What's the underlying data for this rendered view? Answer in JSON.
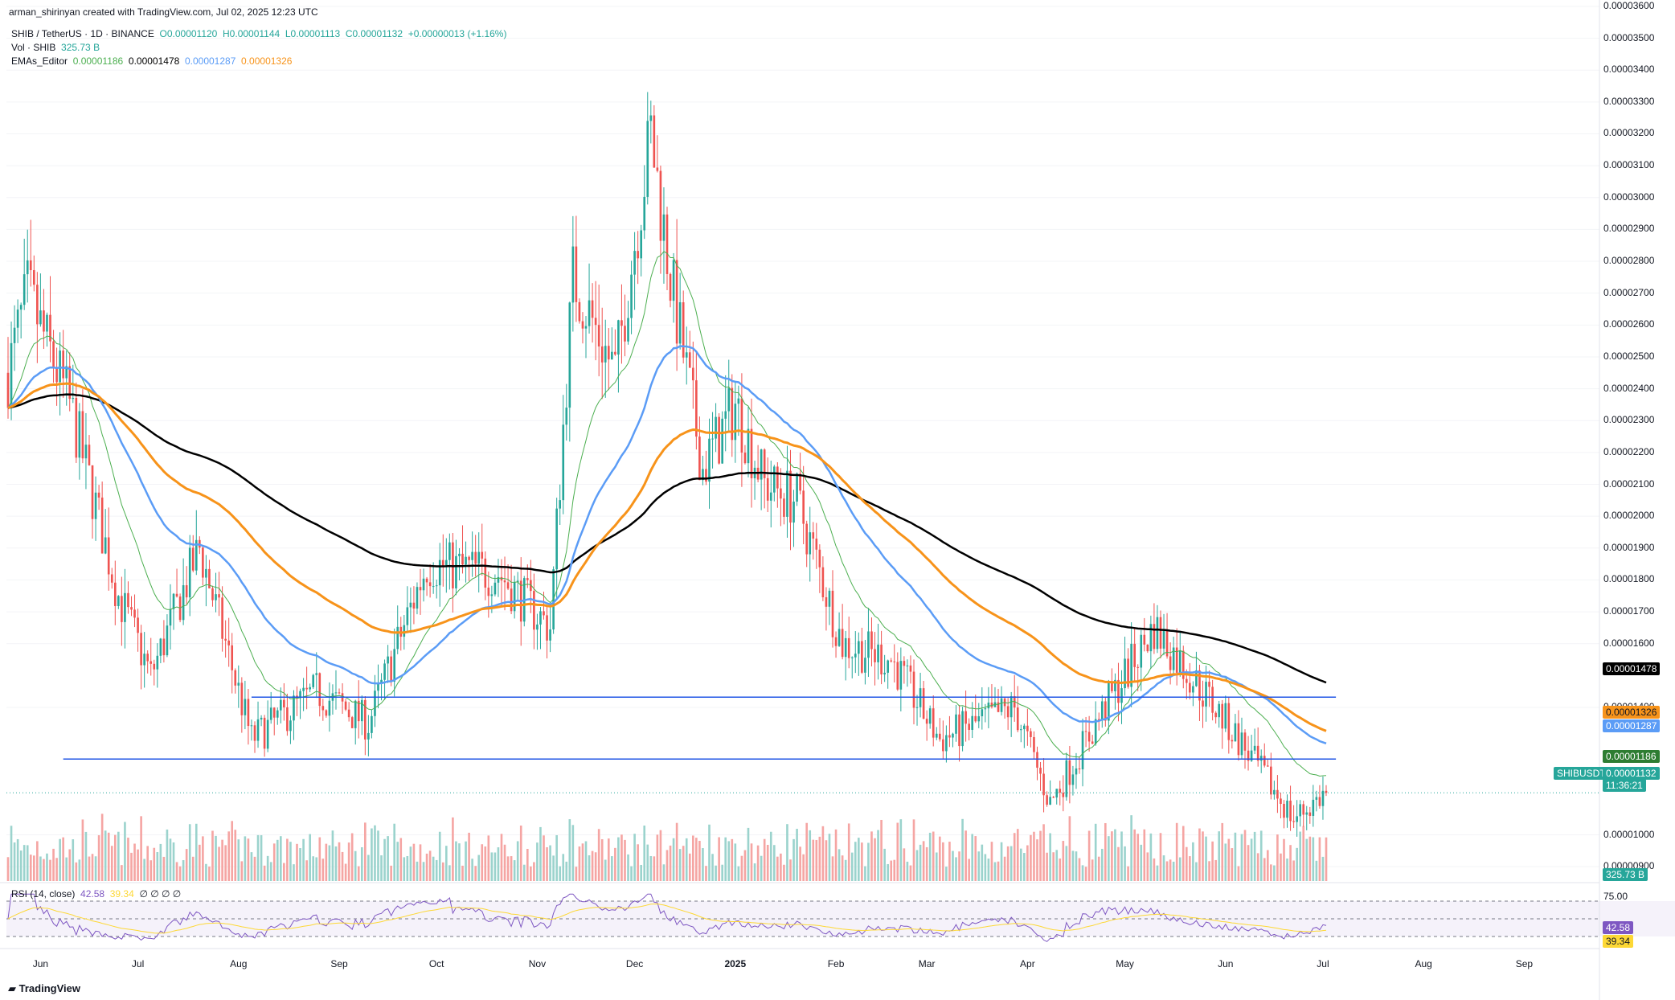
{
  "header": {
    "creator": "arman_shirinyan created with TradingView.com, Jul 02, 2025 12:23 UTC",
    "symbol_line": "SHIB / TetherUS · 1D · BINANCE",
    "ohlc": {
      "o": "O0.00001120",
      "h": "H0.00001144",
      "l": "L0.00001113",
      "c": "C0.00001132",
      "chg": "+0.00000013 (+1.16%)"
    },
    "vol_label": "Vol · SHIB",
    "vol_value": "325.73 B",
    "ema_label": "EMAs_Editor",
    "ema_values": [
      "0.00001186",
      "0.00001478",
      "0.00001287",
      "0.00001326"
    ]
  },
  "colors": {
    "up": "#26a69a",
    "down": "#ef5350",
    "ema_green": "#4caf50",
    "ema_black": "#000000",
    "ema_blue": "#5b9cf6",
    "ema_orange": "#f7931a",
    "hline": "#1e53e5",
    "rsi": "#7e57c2",
    "rsi_ma": "#fdd835"
  },
  "price_axis": [
    "0.00003600",
    "0.00003500",
    "0.00003400",
    "0.00003300",
    "0.00003200",
    "0.00003100",
    "0.00003000",
    "0.00002900",
    "0.00002800",
    "0.00002700",
    "0.00002600",
    "0.00002500",
    "0.00002400",
    "0.00002300",
    "0.00002200",
    "0.00002100",
    "0.00002000",
    "0.00001900",
    "0.00001800",
    "0.00001700",
    "0.00001600",
    "0.00001400",
    "0.00001000",
    "0.00000900"
  ],
  "badges": {
    "ema_black": "0.00001478",
    "ema_orange": "0.00001326",
    "ema_blue": "0.00001287",
    "ema_green": "0.00001186",
    "symbol": "SHIBUSDT",
    "last": "0.00001132",
    "countdown": "11:36:21",
    "volume": "325.73 B",
    "rsi": "42.58",
    "rsi_ma": "39.34",
    "rsi_top": "75.00"
  },
  "rsi_legend": {
    "label": "RSI (14, close)",
    "rsi": "42.58",
    "ma": "39.34",
    "zeros": "∅ ∅ ∅ ∅"
  },
  "time_axis": [
    "Jun",
    "Jul",
    "Aug",
    "Sep",
    "Oct",
    "Nov",
    "Dec",
    "2025",
    "Feb",
    "Mar",
    "Apr",
    "May",
    "Jun",
    "Jul",
    "Aug",
    "Sep"
  ],
  "brand": "TradingView",
  "chart_data": {
    "type": "candlestick",
    "symbol": "SHIB / TetherUS",
    "interval": "1D",
    "x_range": [
      "2024-05-22",
      "2025-07-02"
    ],
    "y_range": [
      8.5e-06,
      3.62e-05
    ],
    "horizontal_levels": [
      1.432e-05,
      1.238e-05
    ],
    "key_points": [
      {
        "date": "2024-05-22",
        "close": 2.45e-05
      },
      {
        "date": "2024-05-28",
        "close": 2.7e-05
      },
      {
        "date": "2024-06-10",
        "close": 2.35e-05
      },
      {
        "date": "2024-06-25",
        "close": 1.75e-05
      },
      {
        "date": "2024-07-05",
        "close": 1.5e-05
      },
      {
        "date": "2024-07-20",
        "close": 1.9e-05
      },
      {
        "date": "2024-08-05",
        "close": 1.3e-05
      },
      {
        "date": "2024-08-25",
        "close": 1.45e-05
      },
      {
        "date": "2024-09-10",
        "close": 1.35e-05
      },
      {
        "date": "2024-09-28",
        "close": 1.85e-05
      },
      {
        "date": "2024-10-20",
        "close": 1.82e-05
      },
      {
        "date": "2024-11-05",
        "close": 1.65e-05
      },
      {
        "date": "2024-11-12",
        "close": 2.75e-05
      },
      {
        "date": "2024-11-25",
        "close": 2.45e-05
      },
      {
        "date": "2024-12-06",
        "close": 3.2e-05
      },
      {
        "date": "2024-12-12",
        "close": 2.75e-05
      },
      {
        "date": "2024-12-22",
        "close": 2.15e-05
      },
      {
        "date": "2025-01-01",
        "close": 2.35e-05
      },
      {
        "date": "2025-01-10",
        "close": 2.1e-05
      },
      {
        "date": "2025-01-20",
        "close": 2.05e-05
      },
      {
        "date": "2025-02-03",
        "close": 1.6e-05
      },
      {
        "date": "2025-02-18",
        "close": 1.55e-05
      },
      {
        "date": "2025-03-05",
        "close": 1.3e-05
      },
      {
        "date": "2025-03-28",
        "close": 1.4e-05
      },
      {
        "date": "2025-04-08",
        "close": 1.1e-05
      },
      {
        "date": "2025-04-25",
        "close": 1.4e-05
      },
      {
        "date": "2025-05-10",
        "close": 1.65e-05
      },
      {
        "date": "2025-05-25",
        "close": 1.45e-05
      },
      {
        "date": "2025-06-05",
        "close": 1.3e-05
      },
      {
        "date": "2025-06-22",
        "close": 1.05e-05
      },
      {
        "date": "2025-07-02",
        "close": 1.132e-05
      }
    ],
    "ema_final": {
      "green": 1.186e-05,
      "black": 1.478e-05,
      "blue": 1.287e-05,
      "orange": 1.326e-05
    },
    "rsi": {
      "period": 14,
      "last": 42.58,
      "ma_last": 39.34,
      "upper": 70,
      "lower": 30
    }
  }
}
